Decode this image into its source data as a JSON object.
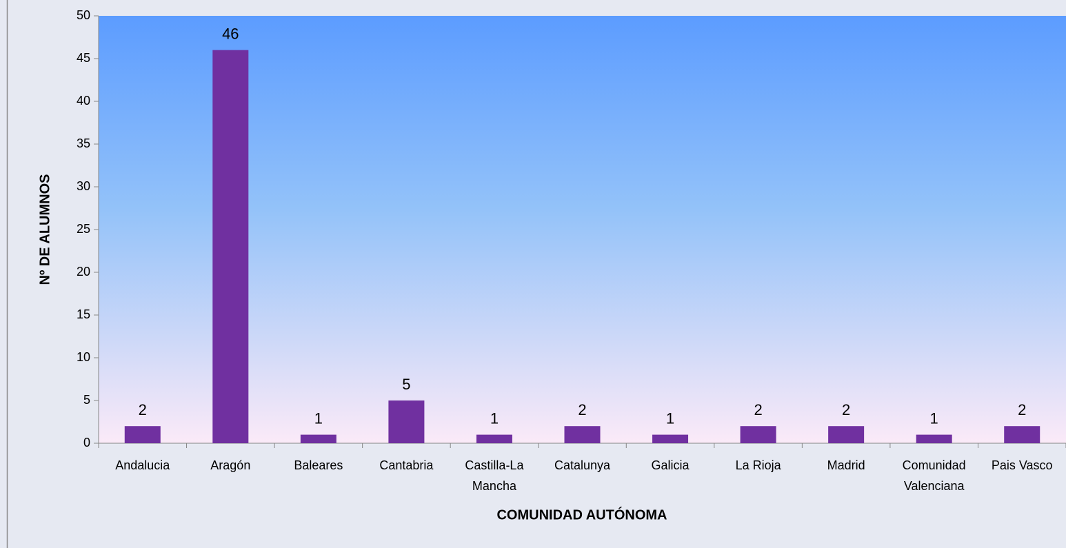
{
  "chart_data": {
    "type": "bar",
    "x_label": "COMUNIDAD AUTÓNOMA",
    "y_label": "Nº DE ALUMNOS",
    "categories": [
      "Andalucia",
      "Aragón",
      "Baleares",
      "Cantabria",
      "Castilla-La Mancha",
      "Catalunya",
      "Galicia",
      "La Rioja",
      "Madrid",
      "Comunidad Valenciana",
      "Pais Vasco"
    ],
    "values": [
      2,
      46,
      1,
      5,
      1,
      2,
      1,
      2,
      2,
      1,
      2
    ],
    "color": "#7030a0",
    "ylim": [
      0,
      50
    ],
    "yticks": [
      0,
      5,
      10,
      15,
      20,
      25,
      30,
      35,
      40,
      45,
      50
    ],
    "grid": false
  }
}
